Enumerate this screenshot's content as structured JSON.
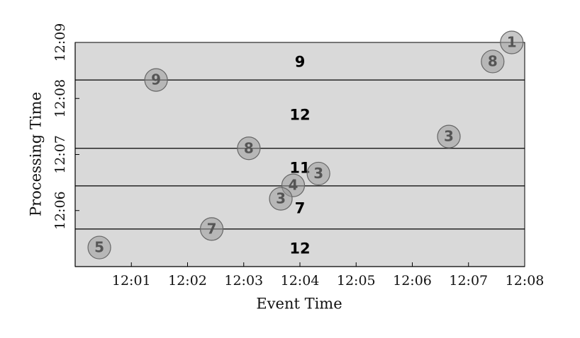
{
  "chart_data": {
    "type": "scatter",
    "x_label": "Event Time",
    "y_label": "Processing Time",
    "xlim": [
      0,
      8
    ],
    "ylim": [
      5,
      9
    ],
    "xticks": [
      {
        "value": 1,
        "label": "12:01"
      },
      {
        "value": 2,
        "label": "12:02"
      },
      {
        "value": 3,
        "label": "12:03"
      },
      {
        "value": 4,
        "label": "12:04"
      },
      {
        "value": 5,
        "label": "12:05"
      },
      {
        "value": 6,
        "label": "12:06"
      },
      {
        "value": 7,
        "label": "12:07"
      },
      {
        "value": 8,
        "label": "12:08"
      }
    ],
    "yticks": [
      {
        "value": 6,
        "label": "12:06"
      },
      {
        "value": 7,
        "label": "12:07"
      },
      {
        "value": 8,
        "label": "12:08"
      },
      {
        "value": 9,
        "label": "12:09"
      }
    ],
    "series": [
      {
        "color": "#9a9a9a",
        "x": [
          7.77,
          7.43,
          1.44,
          6.65,
          3.09,
          4.33,
          3.88,
          3.66,
          2.43,
          0.43
        ],
        "values": [
          9.0,
          8.66,
          8.33,
          7.32,
          7.11,
          6.66,
          6.45,
          6.21,
          5.67,
          5.34
        ],
        "scores": [
          1,
          8,
          9,
          3,
          8,
          3,
          4,
          3,
          7,
          5
        ]
      }
    ],
    "triggers": [
      8.33,
      7.11,
      6.44,
      5.67
    ],
    "pane_sums": [
      9,
      12,
      11,
      7,
      12
    ],
    "background": "#d9d9d9"
  }
}
